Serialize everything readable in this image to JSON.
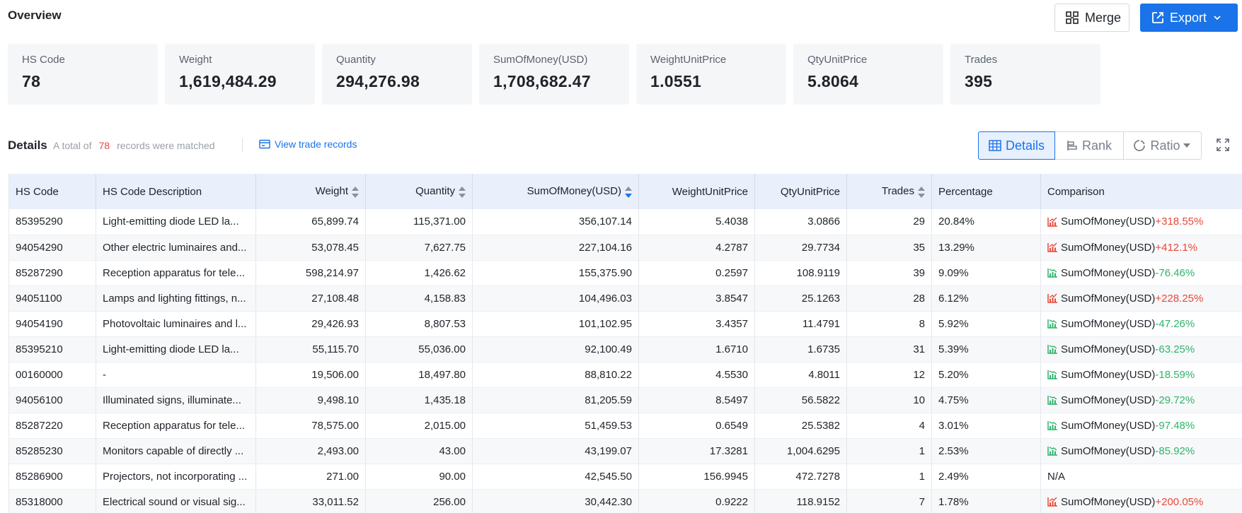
{
  "overview": {
    "title": "Overview",
    "merge_label": "Merge",
    "export_label": "Export"
  },
  "stats": [
    {
      "label": "HS Code",
      "value": "78"
    },
    {
      "label": "Weight",
      "value": "1,619,484.29"
    },
    {
      "label": "Quantity",
      "value": "294,276.98"
    },
    {
      "label": "SumOfMoney(USD)",
      "value": "1,708,682.47"
    },
    {
      "label": "WeightUnitPrice",
      "value": "1.0551"
    },
    {
      "label": "QtyUnitPrice",
      "value": "5.8064"
    },
    {
      "label": "Trades",
      "value": "395"
    }
  ],
  "details": {
    "title": "Details",
    "prefix": "A total of",
    "count": "78",
    "suffix": "records were matched",
    "view_link": "View trade records",
    "tabs": [
      "Details",
      "Rank",
      "Ratio"
    ]
  },
  "colors": {
    "accent": "#1a73e8",
    "up": "#e8483a",
    "down": "#2fb36b",
    "header_bg": "#e9effb"
  },
  "table": {
    "columns": [
      "HS Code",
      "HS Code Description",
      "Weight",
      "Quantity",
      "SumOfMoney(USD)",
      "WeightUnitPrice",
      "QtyUnitPrice",
      "Trades",
      "Percentage",
      "Comparison"
    ],
    "rows": [
      {
        "code": "85395290",
        "desc": "Light-emitting diode LED la...",
        "weight": "65,899.74",
        "qty": "115,371.00",
        "money": "356,107.14",
        "wup": "5.4038",
        "qup": "3.0866",
        "trades": "29",
        "pct": "20.84%",
        "cmp_label": "SumOfMoney(USD)",
        "cmp_val": "+318.55%",
        "dir": "up"
      },
      {
        "code": "94054290",
        "desc": "Other electric luminaires and...",
        "weight": "53,078.45",
        "qty": "7,627.75",
        "money": "227,104.16",
        "wup": "4.2787",
        "qup": "29.7734",
        "trades": "35",
        "pct": "13.29%",
        "cmp_label": "SumOfMoney(USD)",
        "cmp_val": "+412.1%",
        "dir": "up"
      },
      {
        "code": "85287290",
        "desc": "Reception apparatus for tele...",
        "weight": "598,214.97",
        "qty": "1,426.62",
        "money": "155,375.90",
        "wup": "0.2597",
        "qup": "108.9119",
        "trades": "39",
        "pct": "9.09%",
        "cmp_label": "SumOfMoney(USD)",
        "cmp_val": "-76.46%",
        "dir": "down"
      },
      {
        "code": "94051100",
        "desc": "Lamps and lighting fittings, n...",
        "weight": "27,108.48",
        "qty": "4,158.83",
        "money": "104,496.03",
        "wup": "3.8547",
        "qup": "25.1263",
        "trades": "28",
        "pct": "6.12%",
        "cmp_label": "SumOfMoney(USD)",
        "cmp_val": "+228.25%",
        "dir": "up"
      },
      {
        "code": "94054190",
        "desc": "Photovoltaic luminaires and l...",
        "weight": "29,426.93",
        "qty": "8,807.53",
        "money": "101,102.95",
        "wup": "3.4357",
        "qup": "11.4791",
        "trades": "8",
        "pct": "5.92%",
        "cmp_label": "SumOfMoney(USD)",
        "cmp_val": "-47.26%",
        "dir": "down"
      },
      {
        "code": "85395210",
        "desc": "Light-emitting diode LED la...",
        "weight": "55,115.70",
        "qty": "55,036.00",
        "money": "92,100.49",
        "wup": "1.6710",
        "qup": "1.6735",
        "trades": "31",
        "pct": "5.39%",
        "cmp_label": "SumOfMoney(USD)",
        "cmp_val": "-63.25%",
        "dir": "down"
      },
      {
        "code": "00160000",
        "desc": "-",
        "weight": "19,506.00",
        "qty": "18,497.80",
        "money": "88,810.22",
        "wup": "4.5530",
        "qup": "4.8011",
        "trades": "12",
        "pct": "5.20%",
        "cmp_label": "SumOfMoney(USD)",
        "cmp_val": "-18.59%",
        "dir": "down"
      },
      {
        "code": "94056100",
        "desc": "Illuminated signs, illuminate...",
        "weight": "9,498.10",
        "qty": "1,435.18",
        "money": "81,205.59",
        "wup": "8.5497",
        "qup": "56.5822",
        "trades": "10",
        "pct": "4.75%",
        "cmp_label": "SumOfMoney(USD)",
        "cmp_val": "-29.72%",
        "dir": "down"
      },
      {
        "code": "85287220",
        "desc": "Reception apparatus for tele...",
        "weight": "78,575.00",
        "qty": "2,015.00",
        "money": "51,459.53",
        "wup": "0.6549",
        "qup": "25.5382",
        "trades": "4",
        "pct": "3.01%",
        "cmp_label": "SumOfMoney(USD)",
        "cmp_val": "-97.48%",
        "dir": "down"
      },
      {
        "code": "85285230",
        "desc": "Monitors capable of directly ...",
        "weight": "2,493.00",
        "qty": "43.00",
        "money": "43,199.07",
        "wup": "17.3281",
        "qup": "1,004.6295",
        "trades": "1",
        "pct": "2.53%",
        "cmp_label": "SumOfMoney(USD)",
        "cmp_val": "-85.92%",
        "dir": "down"
      },
      {
        "code": "85286900",
        "desc": "Projectors, not incorporating ...",
        "weight": "271.00",
        "qty": "90.00",
        "money": "42,545.50",
        "wup": "156.9945",
        "qup": "472.7278",
        "trades": "1",
        "pct": "2.49%",
        "cmp_label": "N/A",
        "cmp_val": "",
        "dir": "none"
      },
      {
        "code": "85318000",
        "desc": "Electrical sound or visual sig...",
        "weight": "33,011.52",
        "qty": "256.00",
        "money": "30,442.30",
        "wup": "0.9222",
        "qup": "118.9152",
        "trades": "7",
        "pct": "1.78%",
        "cmp_label": "SumOfMoney(USD)",
        "cmp_val": "+200.05%",
        "dir": "up"
      }
    ]
  }
}
